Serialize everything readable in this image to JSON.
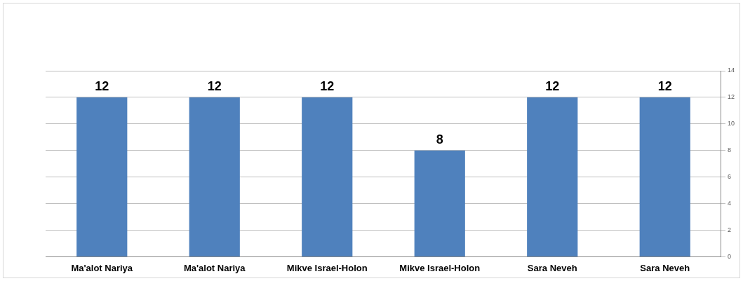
{
  "chart_data": {
    "type": "bar",
    "categories": [
      "Ma'alot Nariya",
      "Ma'alot Nariya",
      "Mikve Israel-Holon",
      "Mikve Israel-Holon",
      "Sara Neveh",
      "Sara Neveh"
    ],
    "values": [
      12,
      12,
      12,
      8,
      12,
      12
    ],
    "color": "#4f81bd",
    "data_labels": true,
    "ylim": [
      0,
      14
    ],
    "yticks": [
      0,
      2,
      4,
      6,
      8,
      10,
      12,
      14
    ],
    "grid": "y",
    "legend": false
  }
}
